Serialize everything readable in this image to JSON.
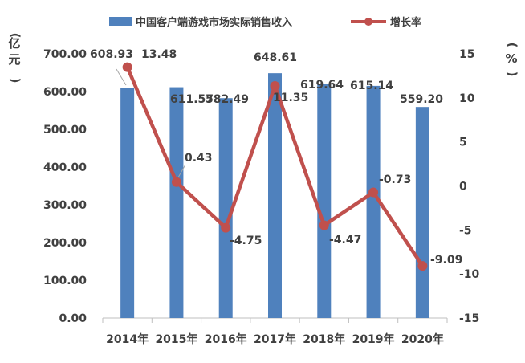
{
  "chart_data": {
    "type": "bar",
    "categories": [
      "2014年",
      "2015年",
      "2016年",
      "2017年",
      "2018年",
      "2019年",
      "2020年"
    ],
    "series": [
      {
        "name": "中国客户端游戏市场实际销售收入",
        "type": "bar",
        "axis": "left",
        "color": "#4F81BD",
        "values": [
          608.93,
          611.57,
          582.49,
          648.61,
          619.64,
          615.14,
          559.2
        ],
        "labels": [
          "608.93",
          "611.57",
          "582.49",
          "648.61",
          "619.64",
          "615.14",
          "559.20"
        ]
      },
      {
        "name": "增长率",
        "type": "line",
        "axis": "right",
        "color": "#C0504D",
        "values": [
          13.48,
          0.43,
          -4.75,
          11.35,
          -4.47,
          -0.73,
          -9.09
        ],
        "labels": [
          "13.48",
          "0.43",
          "-4.75",
          "11.35",
          "-4.47",
          "-0.73",
          "-9.09"
        ]
      }
    ],
    "y_left": {
      "title": "亿元",
      "min": 0,
      "max": 700,
      "ticks": [
        "0.00",
        "100.00",
        "200.00",
        "300.00",
        "400.00",
        "500.00",
        "600.00",
        "700.00"
      ]
    },
    "y_right": {
      "title": "%",
      "min": -15,
      "max": 15,
      "ticks": [
        "-15",
        "-10",
        "-5",
        "0",
        "5",
        "10",
        "15"
      ]
    },
    "legend": "top",
    "grid": false
  }
}
